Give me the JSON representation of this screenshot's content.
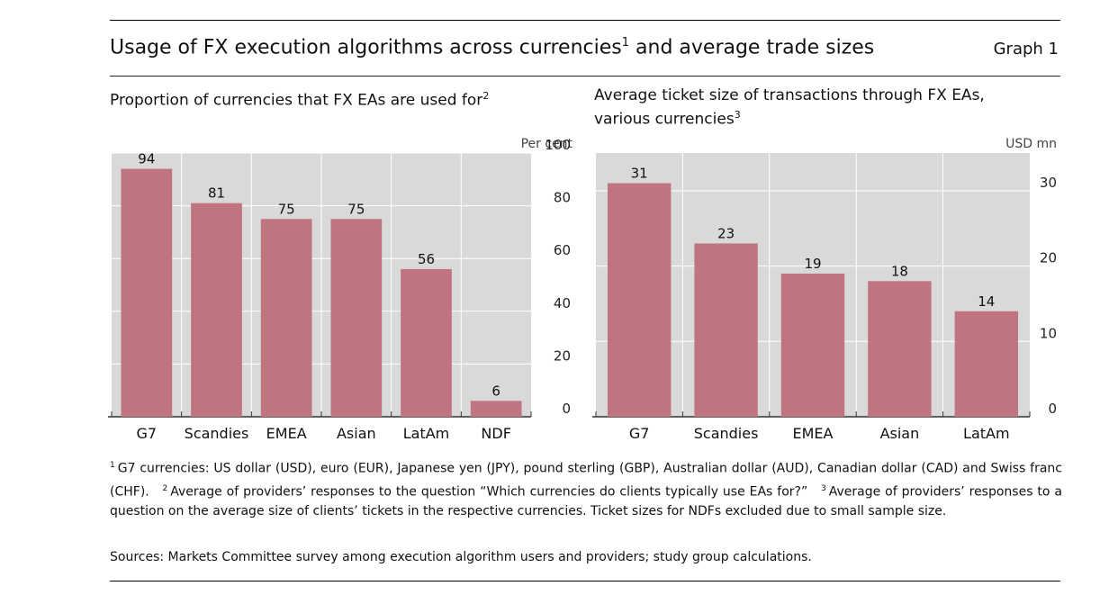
{
  "header": {
    "title": "Usage of FX execution algorithms across currencies",
    "title_sup": "1",
    "title_tail": " and average trade sizes",
    "graph_label": "Graph 1"
  },
  "panels": {
    "left": {
      "title": "Proportion of currencies that FX EAs are used for",
      "title_sup": "2",
      "unit": "Per cent"
    },
    "right": {
      "title": "Average ticket size of transactions through FX EAs, various currencies",
      "title_sup": "3",
      "unit": "USD mn"
    }
  },
  "chart_data": [
    {
      "type": "bar",
      "title": "Proportion of currencies that FX EAs are used for",
      "ylabel": "Per cent",
      "categories": [
        "G7",
        "Scandies",
        "EMEA",
        "Asian",
        "LatAm",
        "NDF"
      ],
      "values": [
        94,
        81,
        75,
        75,
        56,
        6
      ],
      "ylim": [
        0,
        100
      ],
      "yticks": [
        0,
        20,
        40,
        60,
        80,
        100
      ],
      "grid": true,
      "bar_color": "#bf7480",
      "background": "#d9d9d9"
    },
    {
      "type": "bar",
      "title": "Average ticket size of transactions through FX EAs, various currencies",
      "ylabel": "USD mn",
      "categories": [
        "G7",
        "Scandies",
        "EMEA",
        "Asian",
        "LatAm"
      ],
      "values": [
        31,
        23,
        19,
        18,
        14
      ],
      "ylim": [
        0,
        35
      ],
      "yticks": [
        0,
        10,
        20,
        30
      ],
      "grid": true,
      "bar_color": "#bf7480",
      "background": "#d9d9d9"
    }
  ],
  "footnotes": {
    "n1_mark": "1",
    "n1": "G7 currencies: US dollar (USD), euro (EUR), Japanese yen (JPY), pound sterling (GBP), Australian dollar (AUD), Canadian dollar (CAD) and Swiss franc (CHF).",
    "n2_mark": "2",
    "n2": "Average of providers’ responses to the question “Which currencies do clients typically use EAs for?”",
    "n3_mark": "3",
    "n3": "Average of providers’ responses to a question on the average size of clients’ tickets in the respective currencies. Ticket sizes for NDFs excluded due to small sample size."
  },
  "sources": "Sources: Markets Committee survey among execution algorithm users and providers; study group calculations."
}
